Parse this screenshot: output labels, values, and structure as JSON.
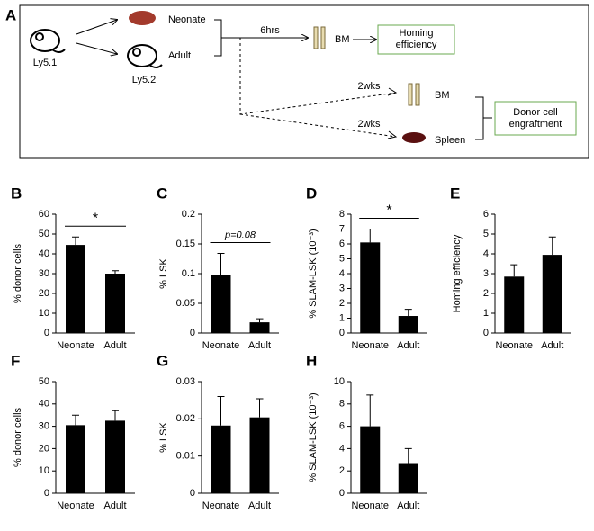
{
  "diagram": {
    "panel": "A",
    "donor": "Ly5.1",
    "recipient": "Ly5.2",
    "neonate": "Neonate",
    "adult": "Adult",
    "short_time": "6hrs",
    "short_site": "BM",
    "short_readout": "Homing efficiency",
    "long_time_bm": "2wks",
    "long_site_bm": "BM",
    "long_time_spleen": "2wks",
    "long_site_spleen": "Spleen",
    "long_readout": "Donor cell engraftment"
  },
  "chart_data": [
    {
      "type": "bar",
      "panel": "B",
      "ylabel": "% donor cells",
      "categories": [
        "Neonate",
        "Adult"
      ],
      "values": [
        44.5,
        30
      ],
      "errors": [
        4,
        1.5
      ],
      "color": "#000000",
      "ylim": [
        0,
        60
      ],
      "yticks": [
        0,
        10,
        20,
        30,
        40,
        50,
        60
      ],
      "annotation": "*"
    },
    {
      "type": "bar",
      "panel": "C",
      "ylabel": "% LSK",
      "categories": [
        "Neonate",
        "Adult"
      ],
      "values": [
        0.097,
        0.018
      ],
      "errors": [
        0.037,
        0.006
      ],
      "color": "#000000",
      "ylim": [
        0,
        0.2
      ],
      "yticks": [
        0,
        0.05,
        0.1,
        0.15,
        0.2
      ],
      "annotation": "p=0.08"
    },
    {
      "type": "bar",
      "panel": "D",
      "ylabel": "% SLAM-LSK (10⁻³)",
      "categories": [
        "Neonate",
        "Adult"
      ],
      "values": [
        6.1,
        1.15
      ],
      "errors": [
        0.9,
        0.45
      ],
      "color": "#000000",
      "ylim": [
        0,
        8
      ],
      "yticks": [
        0,
        1,
        2,
        3,
        4,
        5,
        6,
        7,
        8
      ],
      "annotation": "*"
    },
    {
      "type": "bar",
      "panel": "E",
      "ylabel": "Homing efficiency",
      "categories": [
        "Neonate",
        "Adult"
      ],
      "values": [
        2.85,
        3.95
      ],
      "errors": [
        0.6,
        0.9
      ],
      "color": "#000000",
      "ylim": [
        0,
        6
      ],
      "yticks": [
        0,
        1,
        2,
        3,
        4,
        5,
        6
      ]
    },
    {
      "type": "bar",
      "panel": "F",
      "ylabel": "% donor cells",
      "categories": [
        "Neonate",
        "Adult"
      ],
      "values": [
        30.5,
        32.5
      ],
      "errors": [
        4.5,
        4.5
      ],
      "color": "#000000",
      "ylim": [
        0,
        50
      ],
      "yticks": [
        0,
        10,
        20,
        30,
        40,
        50
      ]
    },
    {
      "type": "bar",
      "panel": "G",
      "ylabel": "% LSK",
      "categories": [
        "Neonate",
        "Adult"
      ],
      "values": [
        0.0182,
        0.0204
      ],
      "errors": [
        0.0078,
        0.005
      ],
      "color": "#000000",
      "ylim": [
        0,
        0.03
      ],
      "yticks": [
        0,
        0.01,
        0.02,
        0.03
      ]
    },
    {
      "type": "bar",
      "panel": "H",
      "ylabel": "% SLAM-LSK (10⁻³)",
      "categories": [
        "Neonate",
        "Adult"
      ],
      "values": [
        6,
        2.7
      ],
      "errors": [
        2.8,
        1.3
      ],
      "color": "#000000",
      "ylim": [
        0,
        10
      ],
      "yticks": [
        0,
        2,
        4,
        6,
        8,
        10
      ]
    }
  ]
}
